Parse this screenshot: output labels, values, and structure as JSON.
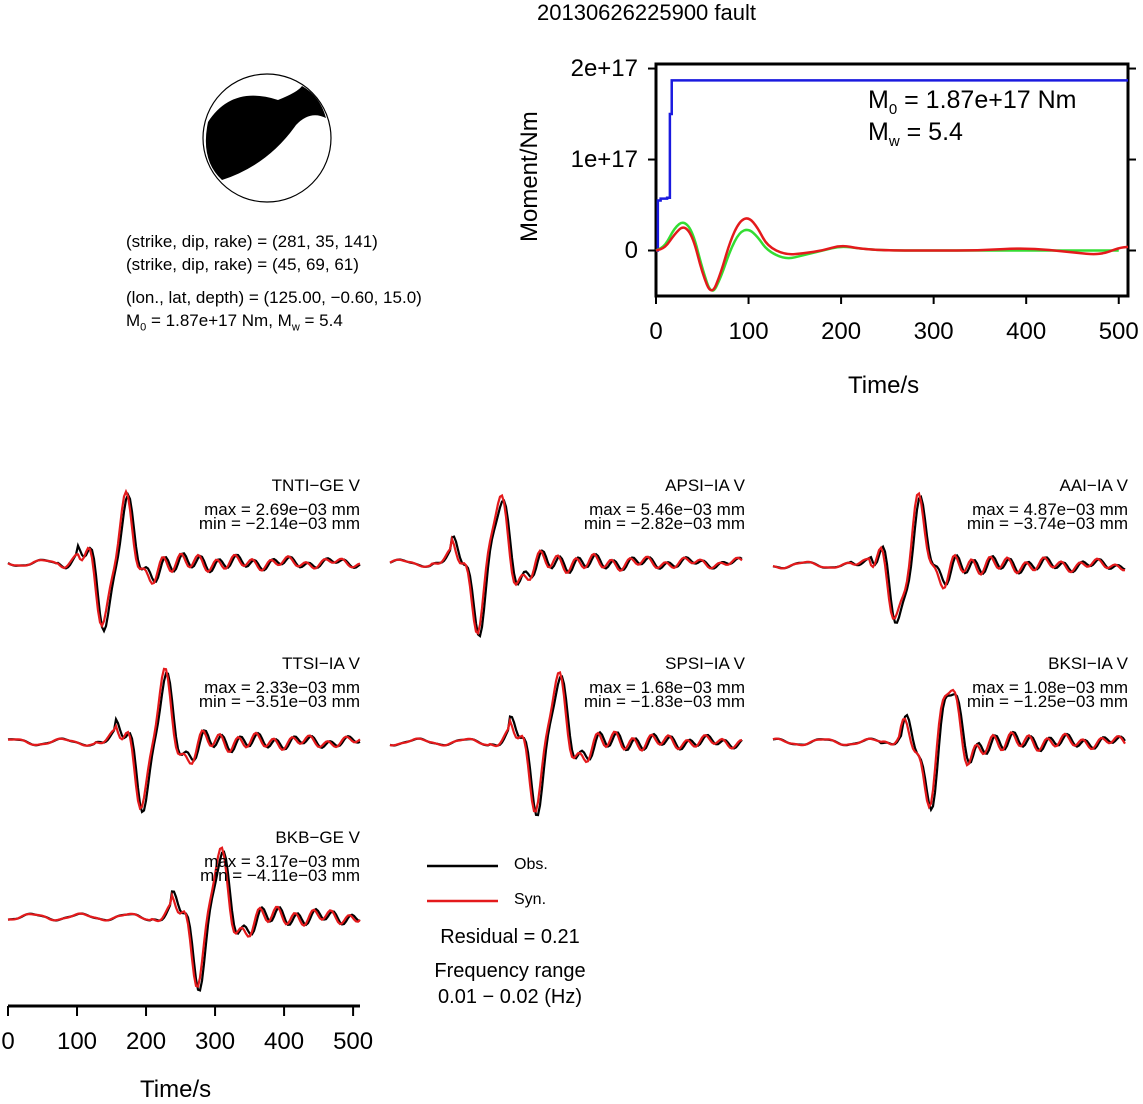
{
  "title": "20130626225900 fault",
  "mechanism": {
    "line1": "(strike, dip, rake) = (281, 35, 141)",
    "line2": "(strike, dip, rake) = (45, 69, 61)",
    "line3": "(lon., lat, depth) = (125.00, −0.60, 15.0)",
    "m0_text": "M",
    "m0_sub": "0",
    "m0_rest": " = 1.87e+17 Nm, M",
    "mw_sub": "w",
    "mw_rest": " = 5.4"
  },
  "moment_panel": {
    "m0_main": "M",
    "m0_sub": "0",
    "m0_value": " = 1.87e+17 Nm",
    "mw_main": "M",
    "mw_sub": "w",
    "mw_value": " = 5.4"
  },
  "legend": {
    "obs": "Obs.",
    "syn": "Syn."
  },
  "residual": "Residual = 0.21",
  "freq_label": "Frequency range",
  "freq_value": "0.01 − 0.02 (Hz)",
  "colors": {
    "obs": "#000000",
    "syn": "#e41a1c",
    "moment": "#1a1adf",
    "stf": "#33dd33"
  },
  "stations": [
    {
      "name": "TNTI−GE V",
      "max": "max = 2.69e−03 mm",
      "min": "min = −2.14e−03 mm"
    },
    {
      "name": "APSI−IA V",
      "max": "max = 5.46e−03 mm",
      "min": "min = −2.82e−03 mm"
    },
    {
      "name": "AAI−IA V",
      "max": "max = 4.87e−03 mm",
      "min": "min = −3.74e−03 mm"
    },
    {
      "name": "TTSI−IA V",
      "max": "max = 2.33e−03 mm",
      "min": "min = −3.51e−03 mm"
    },
    {
      "name": "SPSI−IA V",
      "max": "max = 1.68e−03 mm",
      "min": "min = −1.83e−03 mm"
    },
    {
      "name": "BKSI−IA V",
      "max": "max = 1.08e−03 mm",
      "min": "min = −1.25e−03 mm"
    },
    {
      "name": "BKB−GE V",
      "max": "max = 3.17e−03 mm",
      "min": "min = −4.11e−03 mm"
    }
  ],
  "chart_data": [
    {
      "type": "line",
      "ylabel": "Moment/Nm",
      "xlabel": "Time/s",
      "xlim": [
        0,
        510
      ],
      "ylim": [
        -5e+16,
        2.05e+17
      ],
      "x_ticks": [
        "0",
        "100",
        "200",
        "300",
        "400",
        "500"
      ],
      "y_ticks": [
        "0",
        "1e+17",
        "2e+17"
      ],
      "series": [
        {
          "color": "#1a1adf",
          "x": [
            0,
            2,
            5,
            10,
            12,
            15,
            17,
            20,
            510
          ],
          "values": [
            0,
            5.5e+16,
            5.7e+16,
            5.7e+16,
            5.8e+16,
            1.5e+17,
            1.87e+17,
            1.87e+17,
            1.87e+17
          ]
        },
        {
          "color": "#33dd33",
          "x": [
            0,
            10,
            20,
            30,
            40,
            50,
            60,
            70,
            80,
            90,
            100,
            110,
            120,
            140,
            160,
            180,
            200,
            220,
            250,
            300,
            350,
            400,
            450,
            500
          ],
          "values": [
            0,
            5000000000000000.0,
            2.5e+16,
            3.3e+16,
            2e+16,
            -2e+16,
            -5e+16,
            -3e+16,
            0,
            2e+16,
            2.4e+16,
            1.5e+16,
            0,
            -1e+16,
            -5000000000000000.0,
            0,
            5000000000000000.0,
            2000000000000000.0,
            0,
            0,
            0,
            0,
            0,
            0
          ]
        },
        {
          "color": "#e41a1c",
          "x": [
            0,
            10,
            20,
            30,
            40,
            50,
            60,
            70,
            80,
            90,
            100,
            110,
            120,
            140,
            160,
            180,
            200,
            220,
            250,
            300,
            350,
            400,
            450,
            480,
            500,
            510
          ],
          "values": [
            0,
            3000000000000000.0,
            1.8e+16,
            2.8e+16,
            1.5e+16,
            -2.5e+16,
            -5e+16,
            -2.5e+16,
            1e+16,
            3.2e+16,
            3.7e+16,
            2.5e+16,
            5000000000000000.0,
            -5000000000000000.0,
            -3000000000000000.0,
            0,
            6000000000000000.0,
            2000000000000000.0,
            0,
            0,
            0,
            3000000000000000.0,
            -2000000000000000.0,
            -5000000000000000.0,
            3000000000000000.0,
            4000000000000000.0
          ]
        }
      ]
    },
    {
      "type": "line",
      "xlabel": "Time/s",
      "xlim": [
        0,
        510
      ],
      "x_ticks": [
        "0",
        "100",
        "200",
        "300",
        "400",
        "500"
      ]
    }
  ]
}
